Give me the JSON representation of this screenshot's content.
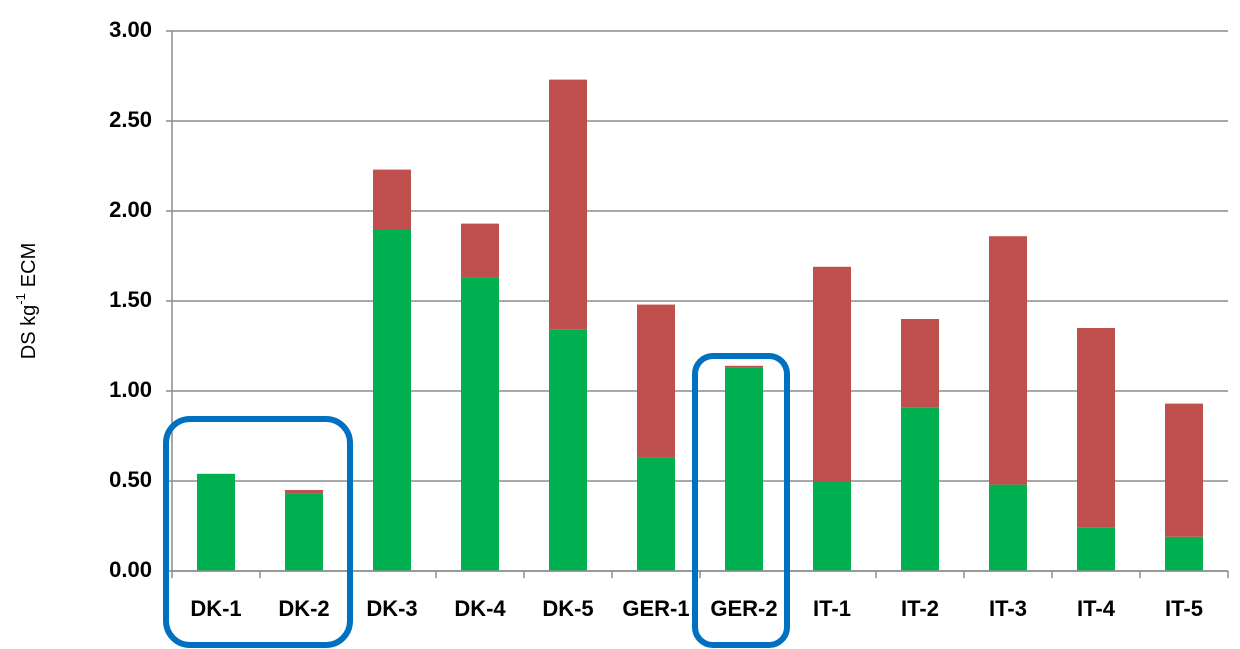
{
  "chart_data": {
    "type": "stacked_bar",
    "ylabel": [
      "DS kg",
      "-1",
      "ECM"
    ],
    "categories": [
      "DK-1",
      "DK-2",
      "DK-3",
      "DK-4",
      "DK-5",
      "GER-1",
      "GER-2",
      "IT-1",
      "IT-2",
      "IT-3",
      "IT-4",
      "IT-5"
    ],
    "series": [
      {
        "color": "#00b050",
        "values": [
          0.54,
          0.43,
          1.9,
          1.63,
          1.34,
          0.63,
          1.13,
          0.5,
          0.91,
          0.48,
          0.24,
          0.19
        ]
      },
      {
        "color": "#c0504d",
        "values": [
          0,
          0.02,
          0.33,
          0.3,
          1.39,
          0.85,
          0.01,
          1.19,
          0.49,
          1.38,
          1.11,
          0.74
        ]
      }
    ],
    "ylim": [
      0,
      3
    ],
    "yticks": [
      {
        "value": 0,
        "label": "0.00"
      },
      {
        "value": 0.5,
        "label": "0.50"
      },
      {
        "value": 1,
        "label": "1.00"
      },
      {
        "value": 1.5,
        "label": "1.50"
      },
      {
        "value": 2,
        "label": "2.00"
      },
      {
        "value": 2.5,
        "label": "2.50"
      },
      {
        "value": 3,
        "label": "3.00"
      }
    ],
    "grid": true
  }
}
